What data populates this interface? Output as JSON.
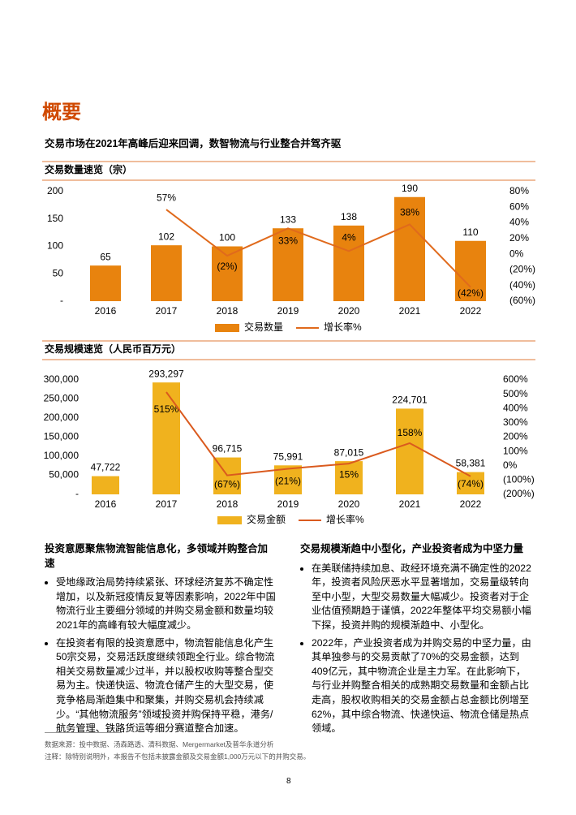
{
  "header": {
    "title": "概要",
    "subtitle": "交易市场在2021年高峰后迎来回调，数智物流与行业整合并驾齐驱"
  },
  "chart_data": [
    {
      "type": "combo",
      "title": "交易数量速览（宗）",
      "categories": [
        "2016",
        "2017",
        "2018",
        "2019",
        "2020",
        "2021",
        "2022"
      ],
      "series": [
        {
          "name": "交易数量",
          "type": "bar",
          "color": "#e8830e",
          "values": [
            65,
            102,
            100,
            133,
            138,
            190,
            110
          ]
        },
        {
          "name": "增长率%",
          "type": "line",
          "axis": "y2",
          "color": "#e06a1c",
          "values": [
            null,
            57,
            -2,
            33,
            4,
            38,
            -42
          ],
          "value_labels": [
            null,
            "57%",
            "(2%)",
            "33%",
            "4%",
            "38%",
            "(42%)"
          ]
        }
      ],
      "ylim": [
        0,
        200
      ],
      "yticks": [
        {
          "value": 0,
          "label": "-"
        },
        50,
        100,
        150,
        200
      ],
      "y2lim": [
        -60,
        80
      ],
      "y2ticks": [
        {
          "value": -60,
          "label": "(60%)"
        },
        {
          "value": -40,
          "label": "(40%)"
        },
        {
          "value": -20,
          "label": "(20%)"
        },
        {
          "value": 0,
          "label": "0%"
        },
        {
          "value": 20,
          "label": "20%"
        },
        {
          "value": 40,
          "label": "40%"
        },
        {
          "value": 60,
          "label": "60%"
        },
        {
          "value": 80,
          "label": "80%"
        }
      ]
    },
    {
      "type": "combo",
      "title": "交易规模速览（人民币百万元）",
      "categories": [
        "2016",
        "2017",
        "2018",
        "2019",
        "2020",
        "2021",
        "2022"
      ],
      "series": [
        {
          "name": "交易金额",
          "type": "bar",
          "color": "#f0b21e",
          "values": [
            47722,
            293297,
            96715,
            75991,
            87015,
            224701,
            58381
          ],
          "value_labels": [
            "47,722",
            "293,297",
            "96,715",
            "75,991",
            "87,015",
            "224,701",
            "58,381"
          ]
        },
        {
          "name": "增长率%",
          "type": "line",
          "axis": "y2",
          "color": "#da5a1e",
          "values": [
            null,
            515,
            -67,
            -21,
            15,
            158,
            -74
          ],
          "value_labels": [
            null,
            "515%",
            "(67%)",
            "(21%)",
            "15%",
            "158%",
            "(74%)"
          ]
        }
      ],
      "ylim": [
        0,
        300000
      ],
      "yticks": [
        {
          "value": 0,
          "label": "-"
        },
        {
          "value": 50000,
          "label": "50,000"
        },
        {
          "value": 100000,
          "label": "100,000"
        },
        {
          "value": 150000,
          "label": "150,000"
        },
        {
          "value": 200000,
          "label": "200,000"
        },
        {
          "value": 250000,
          "label": "250,000"
        },
        {
          "value": 300000,
          "label": "300,000"
        }
      ],
      "y2lim": [
        -200,
        600
      ],
      "y2ticks": [
        {
          "value": -200,
          "label": "(200%)"
        },
        {
          "value": -100,
          "label": "(100%)"
        },
        {
          "value": 0,
          "label": "0%"
        },
        {
          "value": 100,
          "label": "100%"
        },
        {
          "value": 200,
          "label": "200%"
        },
        {
          "value": 300,
          "label": "300%"
        },
        {
          "value": 400,
          "label": "400%"
        },
        {
          "value": 500,
          "label": "500%"
        },
        {
          "value": 600,
          "label": "600%"
        }
      ]
    }
  ],
  "sections": [
    {
      "heading": "投资意愿聚焦物流智能信息化，多领域并购整合加速",
      "bullets": [
        "受地缘政治局势持续紧张、环球经济复苏不确定性增加，以及新冠疫情反复等因素影响，2022年中国物流行业主要细分领域的并购交易金额和数量均较2021年的高峰有较大幅度减少。",
        "在投资者有限的投资意愿中，物流智能信息化产生50宗交易，交易活跃度继续领跑全行业。综合物流相关交易数量减少过半，并以股权收购等整合型交易为主。快递快运、物流仓储产生的大型交易，使竞争格局渐趋集中和聚集，并购交易机会持续减少。“其他物流服务”领域投资并购保持平稳，港务/航务管理、铁路货运等细分赛道整合加速。"
      ]
    },
    {
      "heading": "交易规模渐趋中小型化，产业投资者成为中坚力量",
      "bullets": [
        "在美联储持续加息、政经环境充满不确定性的2022年，投资者风险厌恶水平显著增加，交易量级转向至中小型，大型交易数量大幅减少。投资者对于企业估值预期趋于谨慎，2022年整体平均交易额小幅下探，投资并购的规模渐趋中、小型化。",
        "2022年，产业投资者成为并购交易的中坚力量，由其单独参与的交易贡献了70%的交易金额，达到409亿元，其中物流企业是主力军。在此影响下，与行业并购整合相关的成熟期交易数量和金额占比走高，股权收购相关的交易金额占总金额比例增至62%，其中综合物流、快递快运、物流仓储是热点领域。"
      ]
    }
  ],
  "footnotes": [
    "数据来源：投中数据、汤森路透、清科数据、Mergermarket及普华永道分析",
    "注释：除特别说明外，本报告不包括未披露金额及交易金额1,000万元以下的并购交易。"
  ],
  "page_number": "8"
}
